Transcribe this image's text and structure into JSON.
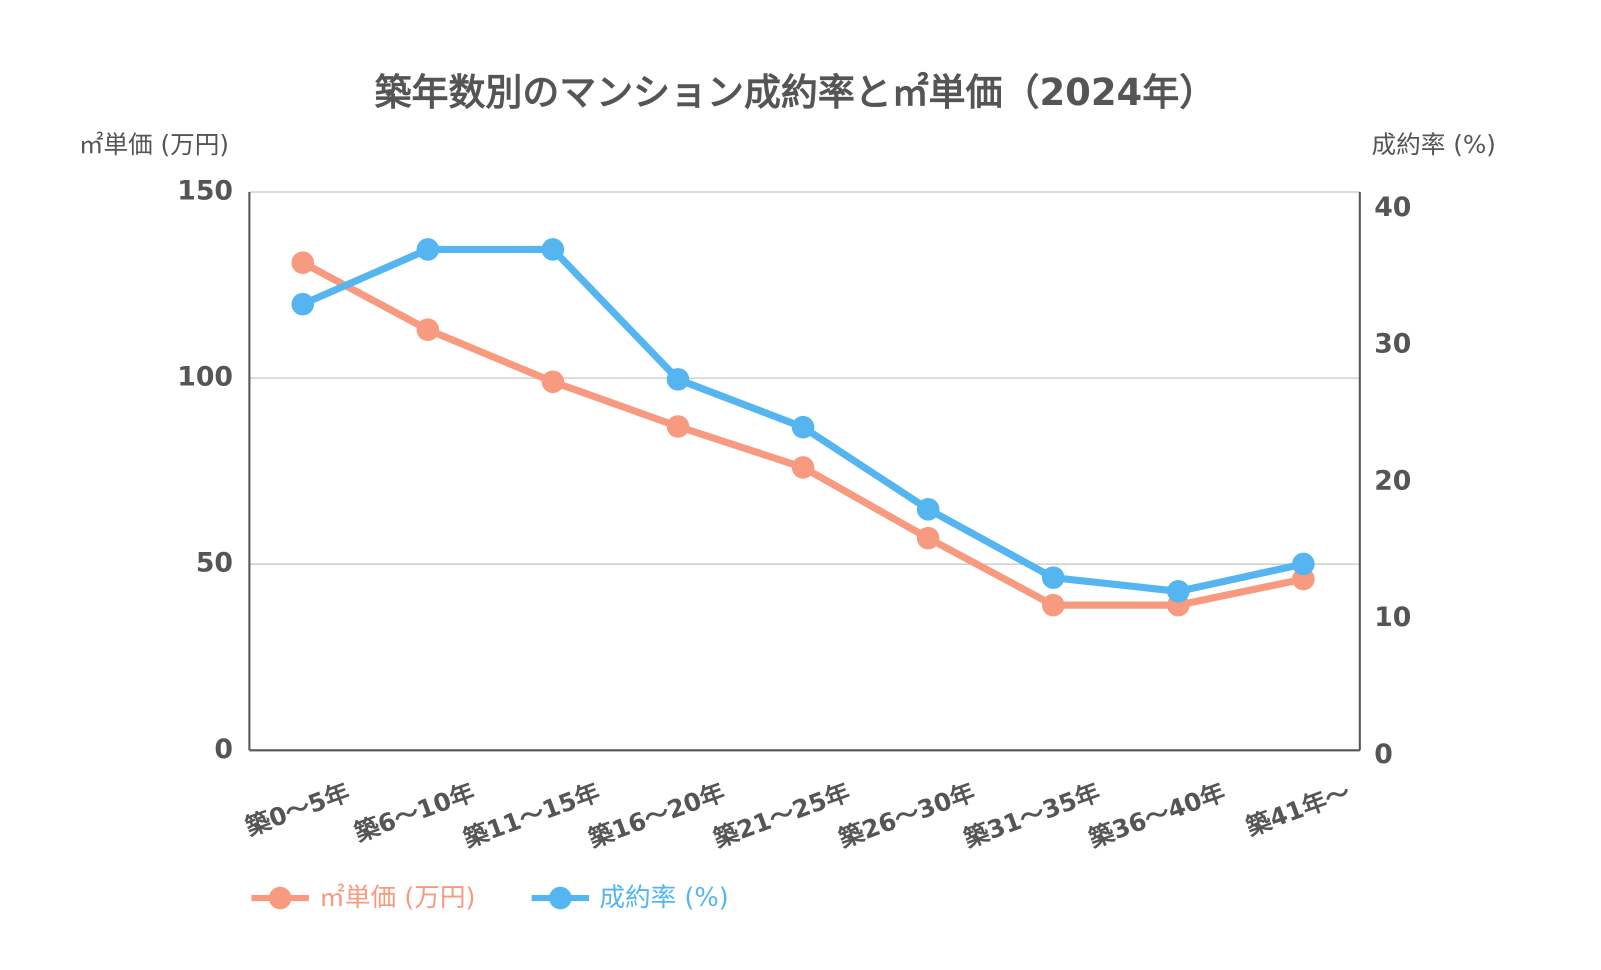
{
  "chart_data": {
    "type": "line",
    "title": "築年数別のマンション成約率と㎡単価（2024年）",
    "y_label": "㎡単価 (万円)",
    "y2_label": "成約率 (%)",
    "categories": [
      "築0～5年",
      "築6～10年",
      "築11～15年",
      "築16～20年",
      "築21～25年",
      "築26～30年",
      "築31～35年",
      "築36～40年",
      "築41年～"
    ],
    "series": [
      {
        "name": "㎡単価 (万円)",
        "color": "#f89a80",
        "values": [
          131,
          113,
          99,
          87,
          76,
          57,
          39,
          39,
          46
        ]
      },
      {
        "name": "成約率 (%)",
        "color": "#55b5f0",
        "axis": "y2",
        "values": [
          33,
          37,
          37,
          27.5,
          24,
          18,
          13,
          12,
          14
        ]
      }
    ],
    "ylim": [
      0,
      150
    ],
    "yticks": [
      0,
      50,
      100,
      150
    ],
    "y2lim": [
      0,
      40
    ],
    "y2ticks": [
      0,
      10,
      20,
      30,
      40
    ],
    "grid": true,
    "legend": "bottom"
  }
}
